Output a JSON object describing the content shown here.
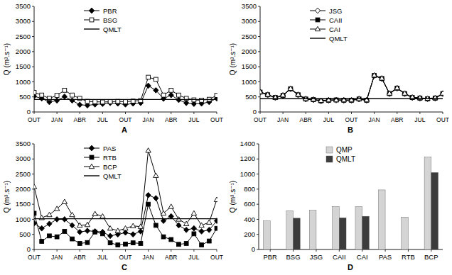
{
  "chart_data": [
    {
      "type": "line",
      "title": "A",
      "y_label": "Q (m³.s⁻¹)",
      "categories": [
        "OUT",
        null,
        null,
        "JAN",
        null,
        null,
        "ABR",
        null,
        null,
        "JUL",
        null,
        null,
        "OUT",
        null,
        null,
        "JAN",
        null,
        null,
        "ABR",
        null,
        null,
        "JUL",
        null,
        null,
        "OUT"
      ],
      "ylim": [
        0,
        3500
      ],
      "yticks": [
        0,
        500,
        1000,
        1500,
        2000,
        2500,
        3000,
        3500
      ],
      "grid": false,
      "legend": "top",
      "series": [
        {
          "name": "PBR",
          "color": "#000000",
          "marker": "diamond",
          "line_style": "solid",
          "values": [
            520,
            450,
            330,
            380,
            510,
            380,
            240,
            220,
            250,
            270,
            300,
            280,
            250,
            280,
            300,
            870,
            720,
            440,
            560,
            400,
            300,
            270,
            280,
            330,
            450
          ]
        },
        {
          "name": "BSG",
          "color": "#000000",
          "marker": "open-square",
          "line_style": "solid",
          "values": [
            650,
            560,
            450,
            550,
            720,
            560,
            450,
            350,
            340,
            330,
            340,
            350,
            340,
            360,
            380,
            1150,
            1080,
            560,
            720,
            560,
            450,
            400,
            390,
            420,
            550
          ]
        },
        {
          "name": "QMLT",
          "color": "#000000",
          "marker": "none",
          "line_style": "solid",
          "values": [
            415,
            415,
            415,
            415,
            415,
            415,
            415,
            415,
            415,
            415,
            415,
            415,
            415,
            415,
            415,
            415,
            415,
            415,
            415,
            415,
            415,
            415,
            415,
            415,
            415
          ]
        }
      ]
    },
    {
      "type": "line",
      "title": "B",
      "y_label": "Q (m³.s⁻¹)",
      "categories": [
        "OUT",
        null,
        null,
        "JAN",
        null,
        null,
        "ABR",
        null,
        null,
        "JUL",
        null,
        null,
        "OUT",
        null,
        null,
        "JAN",
        null,
        null,
        "ABR",
        null,
        null,
        "JUL",
        null,
        null,
        "OUT"
      ],
      "ylim": [
        0,
        3500
      ],
      "yticks": [
        0,
        500,
        1000,
        1500,
        2000,
        2500,
        3000,
        3500
      ],
      "grid": false,
      "legend": "top",
      "series": [
        {
          "name": "JSG",
          "color": "#000000",
          "marker": "open-diamond",
          "line_style": "solid",
          "values": [
            650,
            560,
            470,
            540,
            760,
            560,
            420,
            400,
            360,
            380,
            390,
            380,
            380,
            420,
            380,
            1200,
            1100,
            600,
            780,
            600,
            470,
            450,
            430,
            450,
            600
          ]
        },
        {
          "name": "CAII",
          "color": "#000000",
          "marker": "square",
          "line_style": "solid",
          "values": [
            660,
            570,
            480,
            550,
            770,
            570,
            430,
            410,
            370,
            390,
            400,
            390,
            390,
            430,
            390,
            1210,
            1110,
            610,
            790,
            610,
            480,
            460,
            440,
            460,
            610
          ]
        },
        {
          "name": "CAI",
          "color": "#000000",
          "marker": "open-triangle",
          "line_style": "solid",
          "values": [
            670,
            580,
            480,
            560,
            780,
            580,
            440,
            420,
            380,
            400,
            400,
            400,
            400,
            440,
            400,
            1220,
            1120,
            620,
            800,
            620,
            490,
            470,
            450,
            470,
            620
          ]
        },
        {
          "name": "QMLT",
          "color": "#000000",
          "marker": "none",
          "line_style": "solid",
          "values": [
            440,
            440,
            440,
            440,
            440,
            440,
            440,
            440,
            440,
            440,
            440,
            440,
            440,
            440,
            440,
            440,
            440,
            440,
            440,
            440,
            440,
            440,
            440,
            440,
            440
          ]
        }
      ]
    },
    {
      "type": "line",
      "title": "C",
      "y_label": "Q (m³.s⁻¹)",
      "categories": [
        "OUT",
        null,
        null,
        "JAN",
        null,
        null,
        "ABR",
        null,
        null,
        "JUL",
        null,
        null,
        "OUT",
        null,
        null,
        "JAN",
        null,
        null,
        "ABR",
        null,
        null,
        "JUL",
        null,
        null,
        "OUT"
      ],
      "ylim": [
        0,
        3500
      ],
      "yticks": [
        0,
        500,
        1000,
        1500,
        2000,
        2500,
        3000,
        3500
      ],
      "grid": false,
      "legend": "top",
      "series": [
        {
          "name": "PAS",
          "color": "#000000",
          "marker": "diamond",
          "line_style": "solid",
          "values": [
            870,
            700,
            850,
            1000,
            1000,
            800,
            580,
            620,
            600,
            580,
            450,
            500,
            560,
            500,
            600,
            1800,
            1700,
            950,
            1100,
            800,
            650,
            700,
            600,
            650,
            950
          ]
        },
        {
          "name": "RTB",
          "color": "#000000",
          "marker": "square",
          "line_style": "solid",
          "values": [
            1200,
            270,
            450,
            420,
            600,
            350,
            200,
            230,
            580,
            520,
            220,
            150,
            180,
            220,
            200,
            1500,
            800,
            420,
            330,
            170,
            200,
            520,
            150,
            280,
            700
          ]
        },
        {
          "name": "BCP",
          "color": "#000000",
          "marker": "open-triangle",
          "line_style": "solid",
          "values": [
            2080,
            1050,
            1150,
            1350,
            1580,
            1150,
            800,
            820,
            1180,
            1100,
            700,
            620,
            700,
            780,
            760,
            3280,
            2450,
            1200,
            1420,
            1000,
            850,
            1200,
            800,
            900,
            1650
          ]
        },
        {
          "name": "QMLT",
          "color": "#000000",
          "marker": "none",
          "line_style": "solid",
          "values": [
            1020,
            1020,
            1020,
            1020,
            1020,
            1020,
            1020,
            1020,
            1020,
            1020,
            1020,
            1020,
            1020,
            1020,
            1020,
            1020,
            1020,
            1020,
            1020,
            1020,
            1020,
            1020,
            1020,
            1020,
            1020
          ]
        }
      ]
    },
    {
      "type": "bar",
      "title": "D",
      "y_label": "Q (m³.s⁻¹)",
      "categories": [
        "PBR",
        "BSG",
        "JSG",
        "CAII",
        "CAI",
        "PAS",
        "RTB",
        "BCP"
      ],
      "ylim": [
        0,
        1400
      ],
      "yticks": [
        0,
        200,
        400,
        600,
        800,
        1000,
        1200,
        1400
      ],
      "grid": false,
      "legend": "top-left",
      "series": [
        {
          "name": "QMP",
          "color": "#d4d4d4",
          "values": [
            380,
            515,
            520,
            570,
            570,
            790,
            430,
            1225
          ]
        },
        {
          "name": "QMLT",
          "color": "#3c3c3c",
          "values": [
            null,
            415,
            null,
            420,
            440,
            null,
            null,
            1020
          ]
        }
      ]
    }
  ]
}
